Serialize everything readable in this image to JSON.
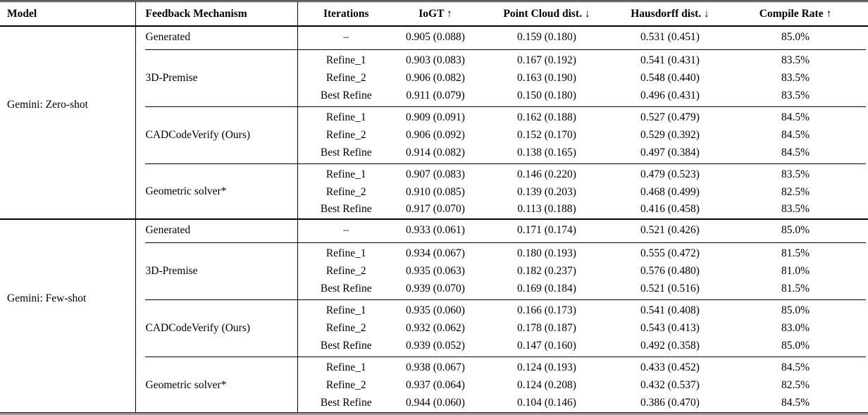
{
  "table": {
    "columns": [
      "Model",
      "Feedback Mechanism",
      "Iterations",
      "IoGT ↑",
      "Point Cloud dist. ↓",
      "Hausdorff dist. ↓",
      "Compile Rate ↑"
    ],
    "sections": [
      {
        "model": "Gemini: Zero-shot",
        "groups": [
          {
            "mechanism": "Generated",
            "rows": [
              {
                "iteration": "–",
                "iogt": "0.905 (0.088)",
                "point_cloud": "0.159 (0.180)",
                "hausdorff": "0.531 (0.451)",
                "compile_rate": "85.0%"
              }
            ]
          },
          {
            "mechanism": "3D-Premise",
            "rows": [
              {
                "iteration": "Refine_1",
                "iogt": "0.903 (0.083)",
                "point_cloud": "0.167 (0.192)",
                "hausdorff": "0.541 (0.431)",
                "compile_rate": "83.5%"
              },
              {
                "iteration": "Refine_2",
                "iogt": "0.906 (0.082)",
                "point_cloud": "0.163 (0.190)",
                "hausdorff": "0.548 (0.440)",
                "compile_rate": "83.5%"
              },
              {
                "iteration": "Best Refine",
                "iogt": "0.911 (0.079)",
                "point_cloud": "0.150 (0.180)",
                "hausdorff": "0.496 (0.431)",
                "compile_rate": "83.5%"
              }
            ]
          },
          {
            "mechanism": "CADCodeVerify (Ours)",
            "rows": [
              {
                "iteration": "Refine_1",
                "iogt": "0.909 (0.091)",
                "point_cloud": "0.162 (0.188)",
                "hausdorff": "0.527 (0.479)",
                "compile_rate": "84.5%"
              },
              {
                "iteration": "Refine_2",
                "iogt": "0.906 (0.092)",
                "point_cloud": "0.152 (0.170)",
                "hausdorff": "0.529 (0.392)",
                "compile_rate": "84.5%"
              },
              {
                "iteration": "Best Refine",
                "iogt": "0.914 (0.082)",
                "point_cloud": "0.138 (0.165)",
                "hausdorff": "0.497 (0.384)",
                "compile_rate": "84.5%"
              }
            ]
          },
          {
            "mechanism": "Geometric solver*",
            "rows": [
              {
                "iteration": "Refine_1",
                "iogt": "0.907 (0.083)",
                "point_cloud": "0.146 (0.220)",
                "hausdorff": "0.479 (0.523)",
                "compile_rate": "83.5%"
              },
              {
                "iteration": "Refine_2",
                "iogt": "0.910 (0.085)",
                "point_cloud": "0.139 (0.203)",
                "hausdorff": "0.468 (0.499)",
                "compile_rate": "82.5%"
              },
              {
                "iteration": "Best Refine",
                "iogt": "0.917 (0.070)",
                "point_cloud": "0.113 (0.188)",
                "hausdorff": "0.416 (0.458)",
                "compile_rate": "83.5%"
              }
            ]
          }
        ]
      },
      {
        "model": "Gemini: Few-shot",
        "groups": [
          {
            "mechanism": "Generated",
            "rows": [
              {
                "iteration": "–",
                "iogt": "0.933 (0.061)",
                "point_cloud": "0.171 (0.174)",
                "hausdorff": "0.521 (0.426)",
                "compile_rate": "85.0%"
              }
            ]
          },
          {
            "mechanism": "3D-Premise",
            "rows": [
              {
                "iteration": "Refine_1",
                "iogt": "0.934 (0.067)",
                "point_cloud": "0.180 (0.193)",
                "hausdorff": "0.555 (0.472)",
                "compile_rate": "81.5%"
              },
              {
                "iteration": "Refine_2",
                "iogt": "0.935 (0.063)",
                "point_cloud": "0.182 (0.237)",
                "hausdorff": "0.576 (0.480)",
                "compile_rate": "81.0%"
              },
              {
                "iteration": "Best Refine",
                "iogt": "0.939 (0.070)",
                "point_cloud": "0.169 (0.184)",
                "hausdorff": "0.521 (0.516)",
                "compile_rate": "81.5%"
              }
            ]
          },
          {
            "mechanism": "CADCodeVerify (Ours)",
            "rows": [
              {
                "iteration": "Refine_1",
                "iogt": "0.935 (0.060)",
                "point_cloud": "0.166 (0.173)",
                "hausdorff": "0.541 (0.408)",
                "compile_rate": "85.0%"
              },
              {
                "iteration": "Refine_2",
                "iogt": "0.932 (0.062)",
                "point_cloud": "0.178 (0.187)",
                "hausdorff": "0.543 (0.413)",
                "compile_rate": "83.0%"
              },
              {
                "iteration": "Best Refine",
                "iogt": "0.939 (0.052)",
                "point_cloud": "0.147 (0.160)",
                "hausdorff": "0.492 (0.358)",
                "compile_rate": "85.0%"
              }
            ]
          },
          {
            "mechanism": "Geometric solver*",
            "rows": [
              {
                "iteration": "Refine_1",
                "iogt": "0.938 (0.067)",
                "point_cloud": "0.124 (0.193)",
                "hausdorff": "0.433 (0.452)",
                "compile_rate": "84.5%"
              },
              {
                "iteration": "Refine_2",
                "iogt": "0.937 (0.064)",
                "point_cloud": "0.124 (0.208)",
                "hausdorff": "0.432 (0.537)",
                "compile_rate": "82.5%"
              },
              {
                "iteration": "Best Refine",
                "iogt": "0.944 (0.060)",
                "point_cloud": "0.104 (0.146)",
                "hausdorff": "0.386 (0.470)",
                "compile_rate": "84.5%"
              }
            ]
          }
        ]
      }
    ]
  }
}
